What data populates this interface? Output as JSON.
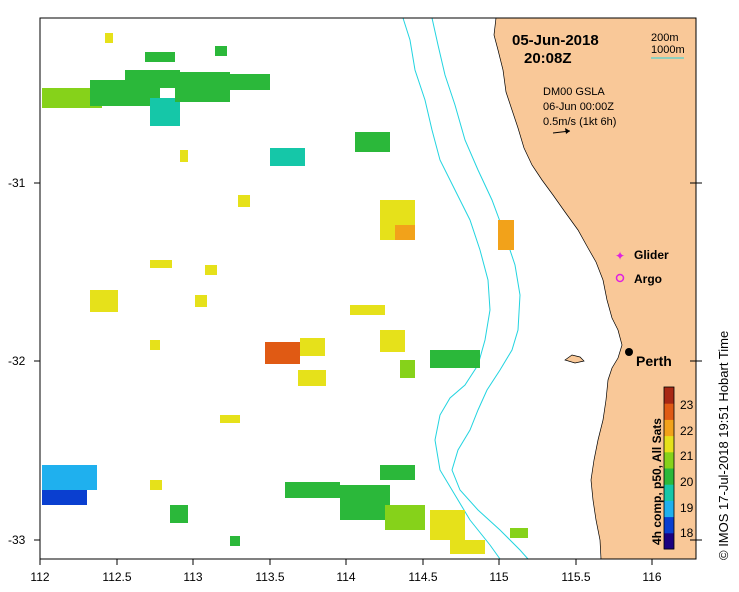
{
  "header": {
    "date": "05-Jun-2018",
    "time": "20:08Z"
  },
  "contours": {
    "line1": "200m",
    "line2": "1000m"
  },
  "currents": {
    "product": "DM00 GSLA",
    "valid": "06-Jun 00:00Z",
    "scale": "0.5m/s (1kt 6h)"
  },
  "legend": {
    "glider": "Glider",
    "argo": "Argo"
  },
  "city": "Perth",
  "axes": {
    "x_ticks": [
      "112",
      "112.5",
      "113",
      "113.5",
      "114",
      "114.5",
      "115",
      "115.5",
      "116"
    ],
    "y_ticks": [
      "-31",
      "-32",
      "-33"
    ]
  },
  "colorbar": {
    "ticks": [
      "23",
      "22",
      "21",
      "20",
      "19",
      "18"
    ],
    "label": "4h comp, p50, All Sats",
    "colors": [
      "#1a0080",
      "#0a3fd0",
      "#1fb0ee",
      "#15c7a8",
      "#2bb83a",
      "#86d21a",
      "#e6e11a",
      "#f2a21a",
      "#e05a14",
      "#a82814"
    ]
  },
  "credit": "© IMOS 17-Jul-2018 19:51 Hobart Time",
  "colors": {
    "land": "#f9c898",
    "contour": "#22d4e0"
  }
}
